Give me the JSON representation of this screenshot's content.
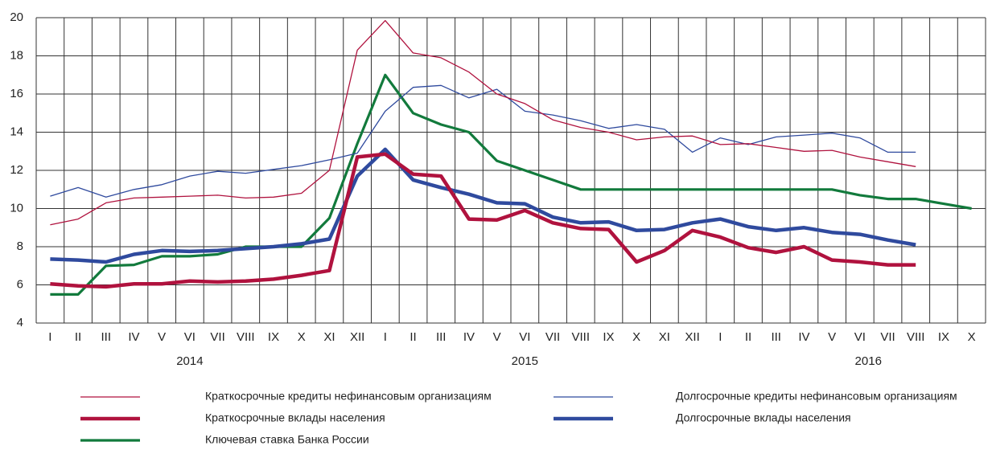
{
  "chart_data": {
    "type": "line",
    "categories": [
      "I",
      "II",
      "III",
      "IV",
      "V",
      "VI",
      "VII",
      "VIII",
      "IX",
      "X",
      "XI",
      "XII",
      "I",
      "II",
      "III",
      "IV",
      "V",
      "VI",
      "VII",
      "VIII",
      "IX",
      "X",
      "XI",
      "XII",
      "I",
      "II",
      "III",
      "IV",
      "V",
      "VI",
      "VII",
      "VIII",
      "IX",
      "X"
    ],
    "year_labels": [
      "2014",
      "2015",
      "2016"
    ],
    "ylim": [
      4,
      20
    ],
    "yticks": [
      4,
      6,
      8,
      10,
      12,
      14,
      16,
      18,
      20
    ],
    "grid": true,
    "series": [
      {
        "name": "Краткосрочные кредиты нефинансовым организациям",
        "color": "#b0123e",
        "line_width": 1.3,
        "values": [
          9.15,
          9.45,
          10.3,
          10.55,
          10.6,
          10.65,
          10.7,
          10.55,
          10.6,
          10.8,
          12.0,
          18.3,
          19.85,
          18.15,
          17.9,
          17.15,
          16.0,
          15.5,
          14.65,
          14.25,
          14.0,
          13.6,
          13.75,
          13.8,
          13.35,
          13.4,
          13.2,
          13.0,
          13.05,
          12.7,
          12.45,
          12.2,
          null,
          null
        ]
      },
      {
        "name": "Долгосрочные кредиты нефинансовым организациям",
        "color": "#2f4a9e",
        "line_width": 1.3,
        "values": [
          10.65,
          11.1,
          10.6,
          11.0,
          11.25,
          11.7,
          11.95,
          11.85,
          12.05,
          12.25,
          12.55,
          12.9,
          15.1,
          16.35,
          16.45,
          15.8,
          16.25,
          15.1,
          14.9,
          14.6,
          14.2,
          14.4,
          14.15,
          12.95,
          13.7,
          13.35,
          13.75,
          13.85,
          13.95,
          13.7,
          12.95,
          12.95,
          null,
          null
        ]
      },
      {
        "name": "Краткосрочные вклады населения",
        "color": "#b0123e",
        "line_width": 4.5,
        "values": [
          6.05,
          5.95,
          5.9,
          6.05,
          6.05,
          6.2,
          6.15,
          6.2,
          6.3,
          6.5,
          6.75,
          12.7,
          12.85,
          11.8,
          11.7,
          9.45,
          9.4,
          9.9,
          9.25,
          8.95,
          8.9,
          7.2,
          7.8,
          8.85,
          8.5,
          7.95,
          7.7,
          8.0,
          7.3,
          7.2,
          7.05,
          7.05,
          null,
          null
        ]
      },
      {
        "name": "Долгосрочные вклады населения",
        "color": "#2f4a9e",
        "line_width": 4.5,
        "values": [
          7.35,
          7.3,
          7.2,
          7.6,
          7.8,
          7.75,
          7.8,
          7.9,
          8.0,
          8.15,
          8.4,
          11.7,
          13.1,
          11.5,
          11.1,
          10.75,
          10.3,
          10.25,
          9.55,
          9.25,
          9.3,
          8.85,
          8.9,
          9.25,
          9.45,
          9.05,
          8.85,
          9.0,
          8.75,
          8.65,
          8.35,
          8.1,
          null,
          null
        ]
      },
      {
        "name": "Ключевая ставка Банка России",
        "color": "#127a3c",
        "line_width": 3.2,
        "values": [
          5.5,
          5.5,
          7.0,
          7.05,
          7.5,
          7.5,
          7.6,
          8.0,
          8.0,
          8.0,
          9.5,
          13.4,
          17.0,
          15.0,
          14.4,
          14.0,
          12.5,
          12.0,
          11.5,
          11.0,
          11.0,
          11.0,
          11.0,
          11.0,
          11.0,
          11.0,
          11.0,
          11.0,
          11.0,
          10.7,
          10.5,
          10.5,
          10.25,
          10.0
        ]
      }
    ]
  }
}
